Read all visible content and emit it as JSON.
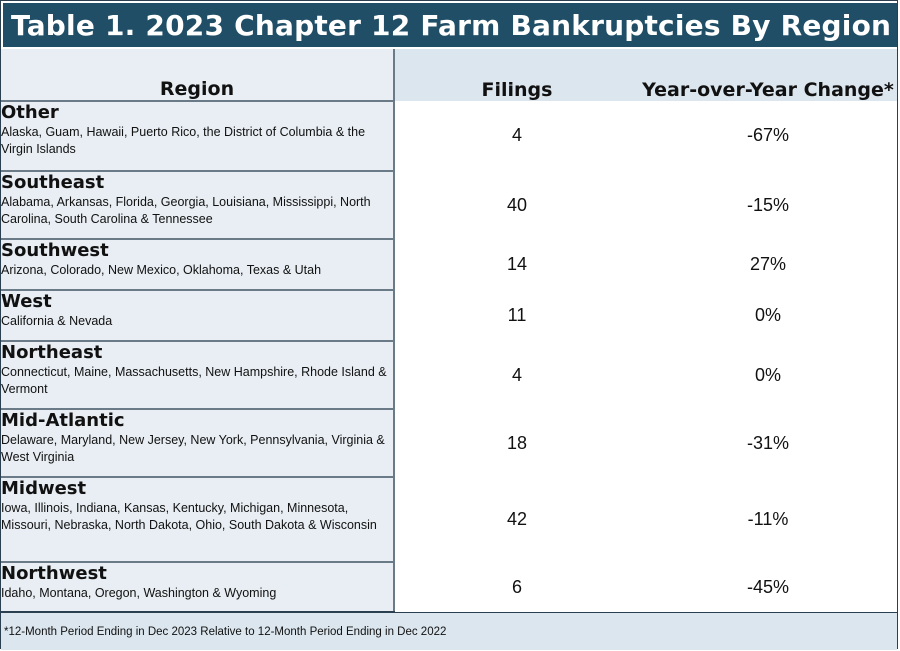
{
  "title": "Table 1. 2023 Chapter 12 Farm Bankruptcies By Region",
  "headers": {
    "region": "Region",
    "filings": "Filings",
    "change": "Year-over-Year Change*"
  },
  "rows": [
    {
      "name": "Other",
      "states": "Alaska, Guam, Hawaii, Puerto Rico, the District of Columbia & the Virgin Islands",
      "filings": "4",
      "change": "-67%"
    },
    {
      "name": "Southeast",
      "states": "Alabama, Arkansas, Florida, Georgia, Louisiana, Mississippi, North Carolina, South Carolina & Tennessee",
      "filings": "40",
      "change": "-15%"
    },
    {
      "name": "Southwest",
      "states": "Arizona, Colorado, New Mexico, Oklahoma, Texas & Utah",
      "filings": "14",
      "change": "27%"
    },
    {
      "name": "West",
      "states": "California & Nevada",
      "filings": "11",
      "change": "0%"
    },
    {
      "name": "Northeast",
      "states": "Connecticut, Maine, Massachusetts, New Hampshire, Rhode Island & Vermont",
      "filings": "4",
      "change": "0%"
    },
    {
      "name": "Mid-Atlantic",
      "states": "Delaware, Maryland, New Jersey, New York, Pennsylvania, Virginia & West Virginia",
      "filings": "18",
      "change": "-31%"
    },
    {
      "name": "Midwest",
      "states": "Iowa, Illinois, Indiana, Kansas, Kentucky, Michigan, Minnesota, Missouri, Nebraska, North Dakota, Ohio, South Dakota & Wisconsin",
      "filings": "42",
      "change": "-11%"
    },
    {
      "name": "Northwest",
      "states": "Idaho, Montana, Oregon, Washington & Wyoming",
      "filings": "6",
      "change": "-45%"
    }
  ],
  "footnote": "*12-Month Period Ending in Dec 2023 Relative to 12-Month Period Ending in Dec 2022",
  "colors": {
    "title_bg": "#1f4e66",
    "region_bg": "#e8eef3",
    "header_bg": "#dbe6ee"
  }
}
